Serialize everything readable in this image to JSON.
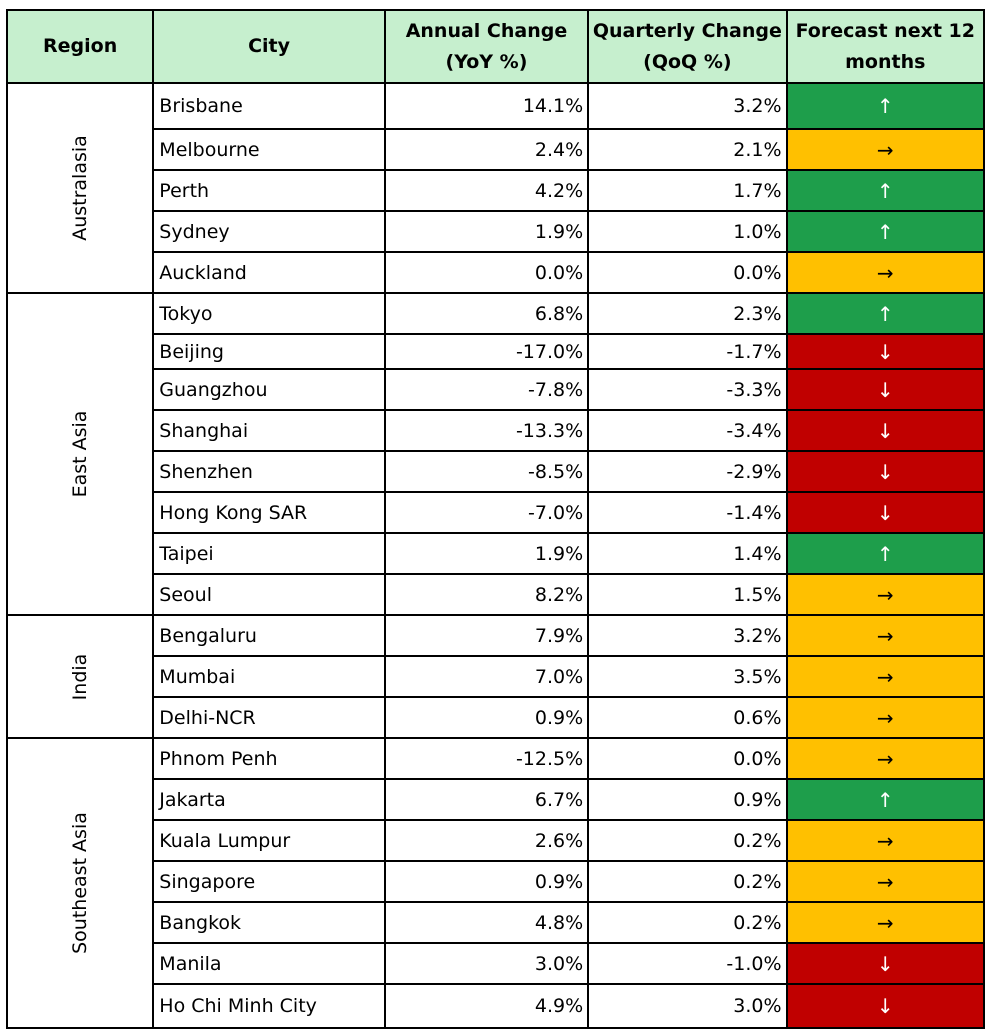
{
  "headers": {
    "region": "Region",
    "city": "City",
    "annual": "Annual Change (YoY %)",
    "quarterly": "Quarterly Change (QoQ %)",
    "forecast": "Forecast next 12 months"
  },
  "regions": [
    {
      "name": "Australasia",
      "rows": [
        {
          "city": "Brisbane",
          "yoy": "14.1%",
          "qoq": "3.2%",
          "forecast": "up",
          "arrow": "↑",
          "height": 46
        },
        {
          "city": "Melbourne",
          "yoy": "2.4%",
          "qoq": "2.1%",
          "forecast": "flat",
          "arrow": "→",
          "height": 41
        },
        {
          "city": "Perth",
          "yoy": "4.2%",
          "qoq": "1.7%",
          "forecast": "up",
          "arrow": "↑",
          "height": 41
        },
        {
          "city": "Sydney",
          "yoy": "1.9%",
          "qoq": "1.0%",
          "forecast": "up",
          "arrow": "↑",
          "height": 41
        },
        {
          "city": "Auckland",
          "yoy": "0.0%",
          "qoq": "0.0%",
          "forecast": "flat",
          "arrow": "→",
          "height": 41
        }
      ]
    },
    {
      "name": "East Asia",
      "rows": [
        {
          "city": "Tokyo",
          "yoy": "6.8%",
          "qoq": "2.3%",
          "forecast": "up",
          "arrow": "↑",
          "height": 41
        },
        {
          "city": "Beijing",
          "yoy": "-17.0%",
          "qoq": "-1.7%",
          "forecast": "down",
          "arrow": "↓",
          "height": 35
        },
        {
          "city": "Guangzhou",
          "yoy": "-7.8%",
          "qoq": "-3.3%",
          "forecast": "down",
          "arrow": "↓",
          "height": 41
        },
        {
          "city": "Shanghai",
          "yoy": "-13.3%",
          "qoq": "-3.4%",
          "forecast": "down",
          "arrow": "↓",
          "height": 41
        },
        {
          "city": "Shenzhen",
          "yoy": "-8.5%",
          "qoq": "-2.9%",
          "forecast": "down",
          "arrow": "↓",
          "height": 41
        },
        {
          "city": "Hong Kong SAR",
          "yoy": "-7.0%",
          "qoq": "-1.4%",
          "forecast": "down",
          "arrow": "↓",
          "height": 41
        },
        {
          "city": "Taipei",
          "yoy": "1.9%",
          "qoq": "1.4%",
          "forecast": "up",
          "arrow": "↑",
          "height": 41
        },
        {
          "city": "Seoul",
          "yoy": "8.2%",
          "qoq": "1.5%",
          "forecast": "flat",
          "arrow": "→",
          "height": 41
        }
      ]
    },
    {
      "name": "India",
      "rows": [
        {
          "city": "Bengaluru",
          "yoy": "7.9%",
          "qoq": "3.2%",
          "forecast": "flat",
          "arrow": "→",
          "height": 41
        },
        {
          "city": "Mumbai",
          "yoy": "7.0%",
          "qoq": "3.5%",
          "forecast": "flat",
          "arrow": "→",
          "height": 41
        },
        {
          "city": "Delhi-NCR",
          "yoy": "0.9%",
          "qoq": "0.6%",
          "forecast": "flat",
          "arrow": "→",
          "height": 41
        }
      ]
    },
    {
      "name": "Southeast Asia",
      "rows": [
        {
          "city": "Phnom Penh",
          "yoy": "-12.5%",
          "qoq": "0.0%",
          "forecast": "flat",
          "arrow": "→",
          "height": 41
        },
        {
          "city": "Jakarta",
          "yoy": "6.7%",
          "qoq": "0.9%",
          "forecast": "up",
          "arrow": "↑",
          "height": 41
        },
        {
          "city": "Kuala Lumpur",
          "yoy": "2.6%",
          "qoq": "0.2%",
          "forecast": "flat",
          "arrow": "→",
          "height": 41
        },
        {
          "city": "Singapore",
          "yoy": "0.9%",
          "qoq": "0.2%",
          "forecast": "flat",
          "arrow": "→",
          "height": 41
        },
        {
          "city": "Bangkok",
          "yoy": "4.8%",
          "qoq": "0.2%",
          "forecast": "flat",
          "arrow": "→",
          "height": 41
        },
        {
          "city": "Manila",
          "yoy": "3.0%",
          "qoq": "-1.0%",
          "forecast": "down",
          "arrow": "↓",
          "height": 41
        },
        {
          "city": "Ho Chi Minh City",
          "yoy": "4.9%",
          "qoq": "3.0%",
          "forecast": "down",
          "arrow": "↓",
          "height": 44
        }
      ]
    }
  ],
  "colors": {
    "header": "#c6efce",
    "up": "#1e9e4b",
    "flat": "#ffc000",
    "down": "#c00000"
  }
}
